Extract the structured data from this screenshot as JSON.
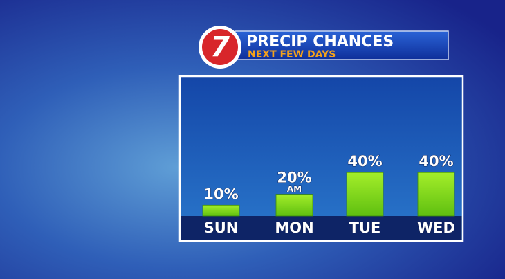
{
  "chart_data": {
    "type": "bar",
    "title": "PRECIP CHANCES",
    "subtitle": "NEXT FEW DAYS",
    "logo": "7",
    "categories": [
      "SUN",
      "MON",
      "TUE",
      "WED"
    ],
    "values": [
      10,
      20,
      40,
      40
    ],
    "value_labels": [
      "10%",
      "20%",
      "40%",
      "40%"
    ],
    "annotations": [
      {
        "x": "MON",
        "text": "AM"
      }
    ],
    "color": "#7fd61a"
  }
}
